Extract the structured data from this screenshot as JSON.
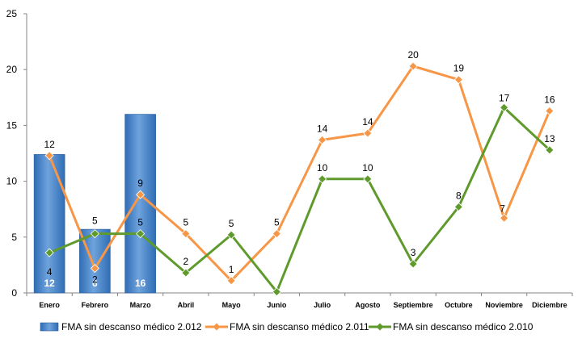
{
  "chart_data": {
    "type": "bar",
    "categories": [
      "Enero",
      "Febrero",
      "Marzo",
      "Abril",
      "Mayo",
      "Junio",
      "Julio",
      "Agosto",
      "Septiembre",
      "Octubre",
      "Noviembre",
      "Diciembre"
    ],
    "ylim": [
      0,
      25
    ],
    "yticks": [
      "0",
      "5",
      "10",
      "15",
      "20",
      "25"
    ],
    "grid": false,
    "legend_position": "bottom",
    "series": [
      {
        "name": "FMA sin descanso médico 2.012",
        "type": "bar",
        "color": "#4a86c8",
        "values": [
          12.4,
          5.7,
          16,
          null,
          null,
          null,
          null,
          null,
          null,
          null,
          null,
          null
        ],
        "labels": [
          "12",
          "6",
          "16",
          "",
          "",
          "",
          "",
          "",
          "",
          "",
          "",
          ""
        ]
      },
      {
        "name": "FMA sin descanso médico 2.011",
        "type": "line",
        "color": "#f79646",
        "values": [
          12.3,
          2.2,
          8.8,
          5.3,
          1.1,
          5.3,
          13.7,
          14.3,
          20.3,
          19.1,
          6.7,
          16.3
        ],
        "labels": [
          "12",
          "2",
          "9",
          "5",
          "1",
          "5",
          "14",
          "14",
          "20",
          "19",
          "7",
          "16"
        ]
      },
      {
        "name": "FMA sin descanso médico 2.010",
        "type": "line",
        "color": "#5f9a2c",
        "values": [
          3.6,
          5.3,
          5.3,
          1.8,
          5.2,
          0.1,
          10.2,
          10.2,
          2.6,
          7.7,
          16.6,
          12.8
        ],
        "labels": [
          "4",
          "5",
          "5",
          "2",
          "5",
          "",
          "10",
          "10",
          "3",
          "8",
          "17",
          "13"
        ]
      }
    ]
  }
}
